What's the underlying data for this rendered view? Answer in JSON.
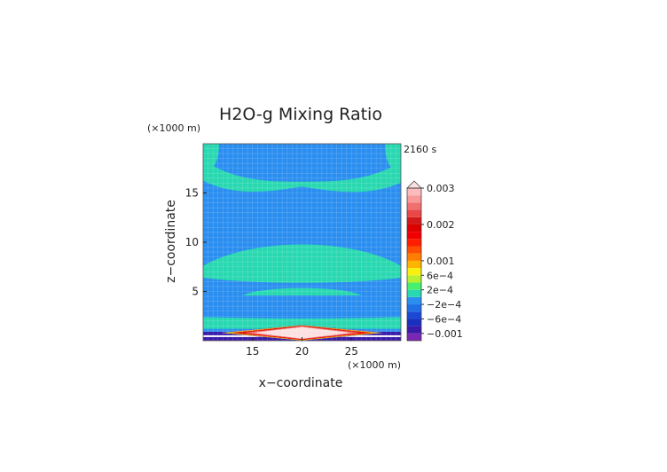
{
  "chart_data": {
    "type": "heatmap",
    "title": "H2O-g Mixing Ratio",
    "time_label": "2160 s",
    "xlabel": "x−coordinate",
    "ylabel": "z−coordinate",
    "x_unit_label": "(×1000 m)",
    "y_unit_label": "(×1000 m)",
    "xlim": [
      10,
      30
    ],
    "ylim": [
      0,
      20
    ],
    "x_ticks": [
      15,
      20,
      25
    ],
    "y_ticks": [
      5,
      10,
      15
    ],
    "grid": true,
    "colorbar": {
      "position": "right",
      "labels": [
        "0.003",
        "0.002",
        "0.001",
        "6e−4",
        "2e−4",
        "−2e−4",
        "−6e−4",
        "−0.001"
      ],
      "label_values": [
        0.003,
        0.002,
        0.001,
        0.0006,
        0.0002,
        -0.0002,
        -0.0006,
        -0.001
      ],
      "bands": [
        {
          "from": -0.0012,
          "to": -0.001,
          "color": "#7a28b4"
        },
        {
          "from": -0.001,
          "to": -0.0008,
          "color": "#3a1aa8"
        },
        {
          "from": -0.0008,
          "to": -0.0006,
          "color": "#1a2fbe"
        },
        {
          "from": -0.0006,
          "to": -0.0004,
          "color": "#1c48d6"
        },
        {
          "from": -0.0004,
          "to": -0.0002,
          "color": "#1f6fe6"
        },
        {
          "from": -0.0002,
          "to": 0.0,
          "color": "#2a8ef0"
        },
        {
          "from": 0.0,
          "to": 0.0002,
          "color": "#28d8b0"
        },
        {
          "from": 0.0002,
          "to": 0.0004,
          "color": "#48f070"
        },
        {
          "from": 0.0004,
          "to": 0.0006,
          "color": "#b8f030"
        },
        {
          "from": 0.0006,
          "to": 0.0008,
          "color": "#f8f010"
        },
        {
          "from": 0.0008,
          "to": 0.001,
          "color": "#ffb400"
        },
        {
          "from": 0.001,
          "to": 0.0012,
          "color": "#ff7e00"
        },
        {
          "from": 0.0012,
          "to": 0.0014,
          "color": "#ff4e00"
        },
        {
          "from": 0.0014,
          "to": 0.0016,
          "color": "#ff1e00"
        },
        {
          "from": 0.0016,
          "to": 0.0018,
          "color": "#f00000"
        },
        {
          "from": 0.0018,
          "to": 0.002,
          "color": "#dc0000"
        },
        {
          "from": 0.002,
          "to": 0.0022,
          "color": "#d21818"
        },
        {
          "from": 0.0022,
          "to": 0.0024,
          "color": "#e84848"
        },
        {
          "from": 0.0024,
          "to": 0.0026,
          "color": "#f07070"
        },
        {
          "from": 0.0026,
          "to": 0.0028,
          "color": "#f89898"
        },
        {
          "from": 0.0028,
          "to": 0.003,
          "color": "#fcbcbc"
        }
      ],
      "overflow_color": "#fce0e0"
    },
    "background_value": -0.0001,
    "contour_regions": [
      {
        "label": "moist-band-upper",
        "value": 0.0001,
        "z_center": 15.9,
        "half_thickness": 0.25,
        "left_rise": 2.2,
        "right_rise": 2.0
      },
      {
        "label": "moist-lens-middle",
        "value": 0.0001,
        "z_top_center": 9.9,
        "z_bottom_center": 6.6,
        "x_center": 20,
        "x_half_width": 8.5
      },
      {
        "label": "moist-layer-lower",
        "value": 0.0001,
        "z_top": 5.6,
        "z_bottom": 4.6,
        "x_from": 14,
        "x_to": 26
      },
      {
        "label": "surface-moist-layer",
        "value": 0.0001,
        "z_top": 2.4,
        "z_bottom": 1.2
      },
      {
        "label": "upper-corner-moist",
        "value": 0.0001,
        "z_bottom": 17.2
      }
    ],
    "mountain": {
      "x_center": 20,
      "x_half_width": 8.5,
      "peak_z": 1.6,
      "core_value": 0.003
    }
  }
}
